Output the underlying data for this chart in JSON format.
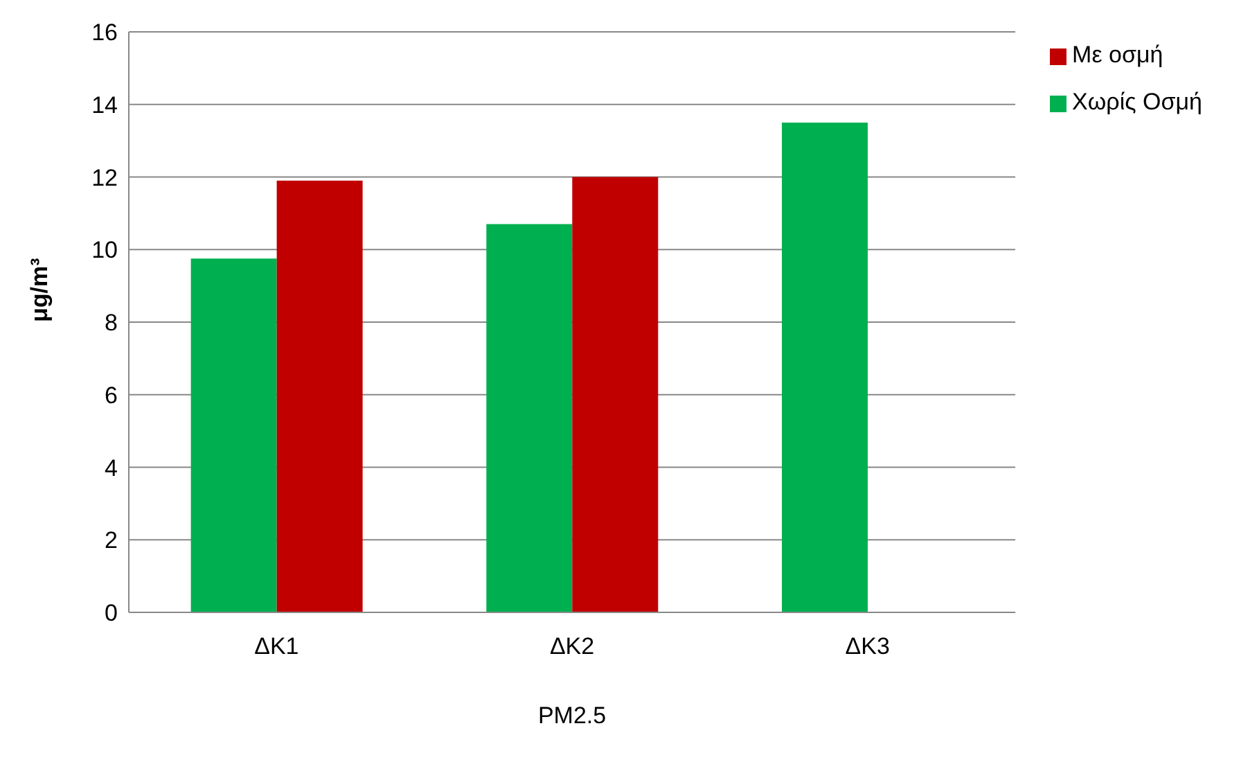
{
  "chart_data": {
    "type": "bar",
    "ylabel": "μg/m³",
    "xlabel": "PM2.5",
    "categories": [
      "ΔΚ1",
      "ΔΚ2",
      "ΔΚ3"
    ],
    "series": [
      {
        "name": "Χωρίς Οσμή",
        "color": "#00b050",
        "values": [
          9.75,
          10.7,
          13.5
        ]
      },
      {
        "name": "Με οσμή",
        "color": "#c00000",
        "values": [
          11.9,
          12.0,
          null
        ]
      }
    ],
    "ylim": [
      0,
      16
    ],
    "yticks": [
      0,
      2,
      4,
      6,
      8,
      10,
      12,
      14,
      16
    ],
    "grid": "y",
    "legend": "top right"
  }
}
